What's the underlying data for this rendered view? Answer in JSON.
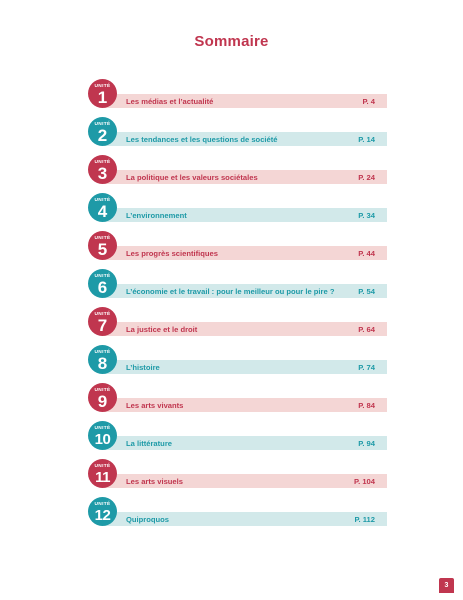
{
  "title": "Sommaire",
  "unit_word": "UNITÉ",
  "entries": [
    {
      "number": "1",
      "title": "Les médias et l’actualité",
      "page": "P. 4"
    },
    {
      "number": "2",
      "title": "Les tendances et les questions de société",
      "page": "P. 14"
    },
    {
      "number": "3",
      "title": "La politique et les valeurs sociétales",
      "page": "P. 24"
    },
    {
      "number": "4",
      "title": "L’environnement",
      "page": "P. 34"
    },
    {
      "number": "5",
      "title": "Les progrès scientifiques",
      "page": "P. 44"
    },
    {
      "number": "6",
      "title": "L’économie et le travail  : pour le meilleur ou pour le pire  ?",
      "page": "P. 54"
    },
    {
      "number": "7",
      "title": "La justice et le droit",
      "page": "P. 64"
    },
    {
      "number": "8",
      "title": "L’histoire",
      "page": "P. 74"
    },
    {
      "number": "9",
      "title": "Les arts vivants",
      "page": "P. 84"
    },
    {
      "number": "10",
      "title": "La littérature",
      "page": "P. 94"
    },
    {
      "number": "11",
      "title": "Les arts visuels",
      "page": "P. 104"
    },
    {
      "number": "12",
      "title": "Quiproquos",
      "page": "P. 112"
    }
  ],
  "page_number": "3",
  "colors": {
    "accent_pink": "#c0364f",
    "accent_teal": "#1e9aa7",
    "bar_pink": "#f4d6d5",
    "bar_teal": "#d2e9ea"
  }
}
